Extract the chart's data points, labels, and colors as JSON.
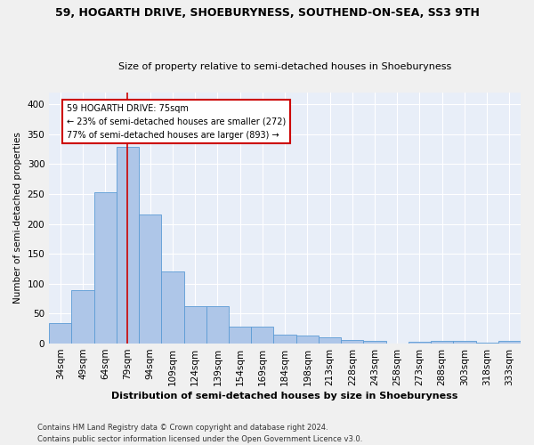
{
  "title": "59, HOGARTH DRIVE, SHOEBURYNESS, SOUTHEND-ON-SEA, SS3 9TH",
  "subtitle": "Size of property relative to semi-detached houses in Shoeburyness",
  "xlabel": "Distribution of semi-detached houses by size in Shoeburyness",
  "ylabel": "Number of semi-detached properties",
  "categories": [
    "34sqm",
    "49sqm",
    "64sqm",
    "79sqm",
    "94sqm",
    "109sqm",
    "124sqm",
    "139sqm",
    "154sqm",
    "169sqm",
    "184sqm",
    "198sqm",
    "213sqm",
    "228sqm",
    "243sqm",
    "258sqm",
    "273sqm",
    "288sqm",
    "303sqm",
    "318sqm",
    "333sqm"
  ],
  "values": [
    35,
    90,
    253,
    328,
    215,
    121,
    62,
    62,
    29,
    29,
    15,
    13,
    10,
    6,
    5,
    0,
    3,
    5,
    4,
    1,
    4
  ],
  "bar_color": "#aec6e8",
  "bar_edge_color": "#5b9bd5",
  "annotation_line1": "59 HOGARTH DRIVE: 75sqm",
  "annotation_line2": "← 23% of semi-detached houses are smaller (272)",
  "annotation_line3": "77% of semi-detached houses are larger (893) →",
  "annotation_box_color": "#ffffff",
  "annotation_box_edge": "#cc0000",
  "vline_color": "#cc0000",
  "vline_x": 3.0,
  "ylim": [
    0,
    420
  ],
  "yticks": [
    0,
    50,
    100,
    150,
    200,
    250,
    300,
    350,
    400
  ],
  "background_color": "#e8eef8",
  "grid_color": "#ffffff",
  "fig_background": "#f0f0f0",
  "footer_line1": "Contains HM Land Registry data © Crown copyright and database right 2024.",
  "footer_line2": "Contains public sector information licensed under the Open Government Licence v3.0."
}
